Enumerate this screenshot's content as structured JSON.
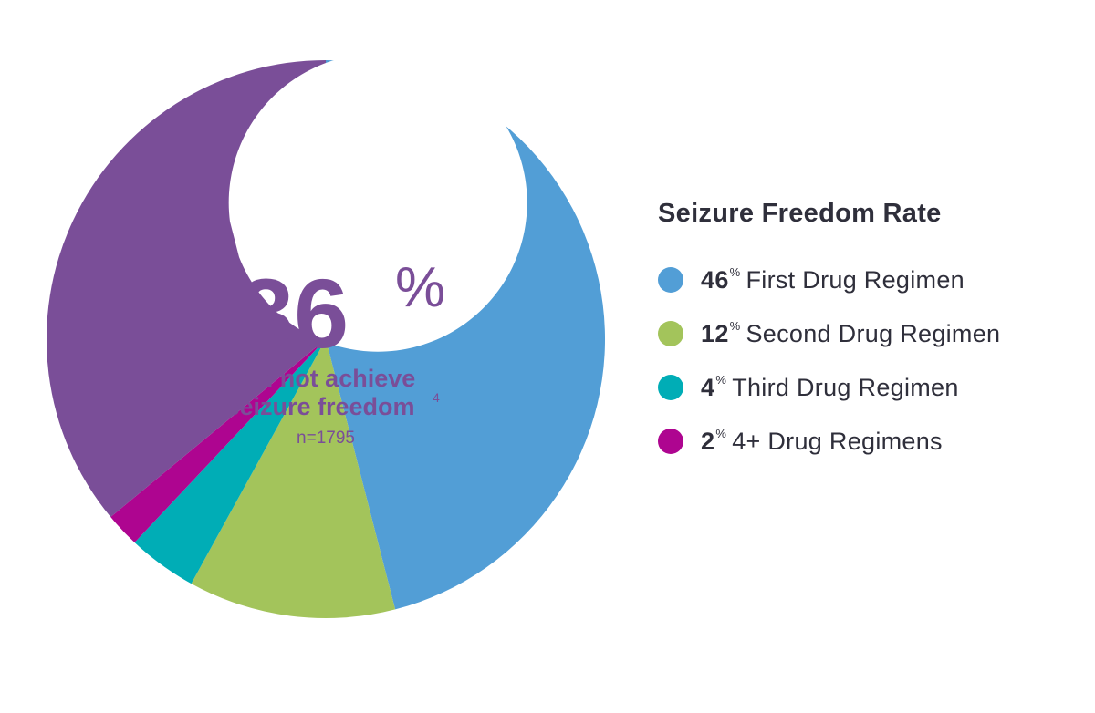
{
  "chart_data": {
    "type": "pie",
    "title": "Seizure Freedom Rate",
    "slices": [
      {
        "label": "First Drug Regimen",
        "value": 46,
        "color": "#529ed6"
      },
      {
        "label": "Second Drug Regimen",
        "value": 12,
        "color": "#a3c45b"
      },
      {
        "label": "Third Drug Regimen",
        "value": 4,
        "color": "#00adb6"
      },
      {
        "label": "4+ Drug Regimens",
        "value": 2,
        "color": "#ae0590"
      },
      {
        "label": "did not achieve seizure freedom",
        "value": 36,
        "color": "#7a4e98"
      }
    ],
    "legend_position": "right"
  },
  "center": {
    "value": "36",
    "unit": "%",
    "line1": "did not achieve",
    "line2": "seizure freedom",
    "footnote": "4",
    "sample": "n=1795"
  },
  "legend": {
    "title": "Seizure Freedom Rate",
    "unit": "%",
    "items": [
      {
        "pct": "46",
        "label": "First Drug Regimen",
        "color": "#529ed6"
      },
      {
        "pct": "12",
        "label": "Second Drug Regimen",
        "color": "#a3c45b"
      },
      {
        "pct": "4",
        "label": "Third Drug Regimen",
        "color": "#00adb6"
      },
      {
        "pct": "2",
        "label": "4+ Drug Regimens",
        "color": "#ae0590"
      }
    ]
  }
}
